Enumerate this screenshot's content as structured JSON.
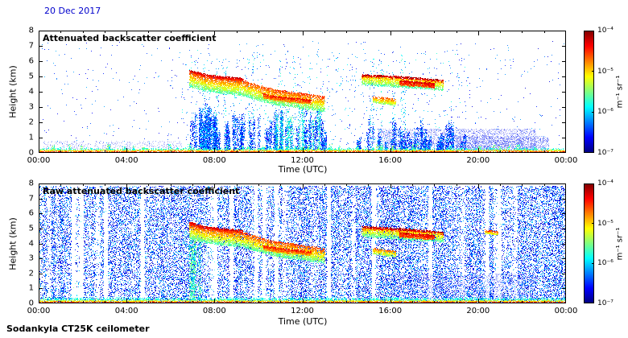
{
  "figure": {
    "date": "20 Dec 2017",
    "date_color": "#0000cc",
    "footer": "Sodankyla CT25K ceilometer"
  },
  "colorbar": {
    "label": "m⁻¹ sr⁻¹",
    "tick_labels": [
      "10⁻⁴",
      "10⁻⁵",
      "10⁻⁶",
      "10⁻⁷"
    ],
    "scale": "log10",
    "range_min": "1e-7",
    "range_max": "1e-4",
    "colormap": "jet"
  },
  "chart_data": [
    {
      "type": "heatmap",
      "title": "Attenuated backscatter coefficient",
      "xlabel": "Time (UTC)",
      "ylabel": "Height (km)",
      "xlim_hours": [
        0,
        24
      ],
      "ylim_km": [
        0,
        8
      ],
      "x_tick_labels": [
        "00:00",
        "04:00",
        "08:00",
        "12:00",
        "16:00",
        "20:00",
        "00:00"
      ],
      "y_tick_labels": [
        "0",
        "1",
        "2",
        "3",
        "4",
        "5",
        "6",
        "7",
        "8"
      ],
      "description": "Cloud layer descending from ~5 km at 07 UTC to ~3.2 km at 13 UTC with red (high backscatter) top; second layer 4.4-5.1 km from 14:40 to 18:30 UTC with strong red top near 17 UTC; small layer ~3.4 km at 15-16 UTC; persistent strong surface return below 0.4 km; virga/precipitation streaks below clouds; weak aerosol haze below 1.6 km from 15:30-22:30 UTC",
      "features": [
        {
          "kind": "haze",
          "t": [
            0.2,
            6.5
          ],
          "h": [
            0.1,
            0.8
          ],
          "count": 500,
          "i": [
            0.06,
            0.2
          ],
          "size": 1,
          "alpha": 0.25
        },
        {
          "kind": "haze",
          "t": [
            15.4,
            22.6
          ],
          "h": [
            0.15,
            1.6
          ],
          "count": 2600,
          "i": [
            0.06,
            0.2
          ],
          "size": 1,
          "alpha": 0.3
        },
        {
          "kind": "haze",
          "t": [
            19.0,
            23.2
          ],
          "h": [
            0.15,
            1.1
          ],
          "count": 1200,
          "i": [
            0.06,
            0.2
          ],
          "size": 1,
          "alpha": 0.3
        },
        {
          "kind": "speckle",
          "t": [
            0.1,
            23.9
          ],
          "h": [
            0.3,
            7.3
          ],
          "count": 600,
          "i": [
            0.08,
            0.3
          ],
          "size": 1,
          "alpha": 0.85
        },
        {
          "kind": "speckle",
          "t": [
            6.5,
            19.5
          ],
          "h": [
            0.3,
            6.8
          ],
          "count": 500,
          "i": [
            0.15,
            0.42
          ],
          "size": 1,
          "alpha": 0.9
        },
        {
          "kind": "columns",
          "t": [
            6.9,
            13.3
          ],
          "hmax": [
            1.0,
            2.9
          ],
          "n": 60,
          "dots": 60,
          "i": [
            0.08,
            0.32
          ],
          "size": 1
        },
        {
          "kind": "columns",
          "t": [
            7.1,
            8.1
          ],
          "hmax": [
            2.0,
            3.4
          ],
          "n": 18,
          "dots": 80,
          "i": [
            0.1,
            0.35
          ],
          "size": 1
        },
        {
          "kind": "columns",
          "t": [
            10.8,
            13.2
          ],
          "hmax": [
            2.2,
            3.1
          ],
          "n": 14,
          "dots": 60,
          "i": [
            0.25,
            0.5
          ],
          "size": 1
        },
        {
          "kind": "columns",
          "t": [
            14.5,
            19.6
          ],
          "hmax": [
            0.7,
            2.3
          ],
          "n": 45,
          "dots": 50,
          "i": [
            0.08,
            0.32
          ],
          "size": 1
        },
        {
          "kind": "columns",
          "t": [
            6.9,
            12.8
          ],
          "hmax": [
            4.8,
            6.9
          ],
          "n": 9,
          "dots": 35,
          "i": [
            0.2,
            0.45
          ],
          "size": 1
        },
        {
          "kind": "columns",
          "t": [
            14.8,
            18.6
          ],
          "hmax": [
            5.2,
            6.6
          ],
          "n": 6,
          "dots": 30,
          "i": [
            0.2,
            0.45
          ],
          "size": 1
        },
        {
          "kind": "columns",
          "t": [
            0.5,
            23.5
          ],
          "hmax": [
            0.35,
            0.6
          ],
          "hbase": 0.05,
          "n": 40,
          "dots": 25,
          "i": [
            0.3,
            0.6
          ],
          "size": 1
        },
        {
          "kind": "band",
          "path": [
            [
              6.85,
              4.85
            ],
            [
              7.6,
              4.55
            ],
            [
              8.4,
              4.4
            ],
            [
              9.2,
              4.3
            ],
            [
              10.0,
              3.95
            ],
            [
              10.8,
              3.65
            ],
            [
              11.6,
              3.5
            ],
            [
              12.3,
              3.35
            ],
            [
              13.0,
              3.2
            ]
          ],
          "half": 0.5,
          "count": 5200,
          "i_top": 0.82,
          "i_bot": 0.45,
          "size": 1
        },
        {
          "kind": "band",
          "path": [
            [
              6.85,
              5.35
            ],
            [
              7.6,
              5.05
            ],
            [
              8.4,
              4.9
            ],
            [
              9.3,
              4.8
            ]
          ],
          "half": 0.1,
          "count": 700,
          "i_top": 0.93,
          "i_bot": 0.8,
          "size": 1
        },
        {
          "kind": "band",
          "path": [
            [
              10.2,
              3.75
            ],
            [
              11.0,
              3.55
            ],
            [
              11.8,
              3.45
            ],
            [
              12.4,
              3.35
            ]
          ],
          "half": 0.14,
          "count": 800,
          "i_top": 0.88,
          "i_bot": 0.72,
          "size": 1
        },
        {
          "kind": "band",
          "path": [
            [
              14.7,
              5.05
            ],
            [
              15.8,
              4.98
            ],
            [
              16.9,
              4.88
            ],
            [
              18.4,
              4.68
            ]
          ],
          "half": 0.1,
          "count": 900,
          "i_top": 0.95,
          "i_bot": 0.85,
          "size": 1
        },
        {
          "kind": "band",
          "path": [
            [
              14.7,
              4.75
            ],
            [
              15.8,
              4.65
            ],
            [
              16.9,
              4.55
            ],
            [
              18.4,
              4.4
            ]
          ],
          "half": 0.28,
          "count": 1700,
          "i_top": 0.7,
          "i_bot": 0.45,
          "size": 1
        },
        {
          "kind": "band",
          "path": [
            [
              16.4,
              4.6
            ],
            [
              17.2,
              4.52
            ],
            [
              18.0,
              4.42
            ]
          ],
          "half": 0.15,
          "count": 700,
          "i_top": 0.92,
          "i_bot": 0.78,
          "size": 1
        },
        {
          "kind": "band",
          "path": [
            [
              15.2,
              3.5
            ],
            [
              15.7,
              3.42
            ],
            [
              16.25,
              3.32
            ]
          ],
          "half": 0.2,
          "count": 450,
          "i_top": 0.8,
          "i_bot": 0.5,
          "size": 1
        },
        {
          "kind": "surface",
          "rows": 4
        }
      ]
    },
    {
      "type": "heatmap",
      "title": "Raw attenuated backscatter coefficient",
      "xlabel": "Time (UTC)",
      "ylabel": "Height (km)",
      "xlim_hours": [
        0,
        24
      ],
      "ylim_km": [
        0,
        8
      ],
      "x_tick_labels": [
        "00:00",
        "04:00",
        "08:00",
        "12:00",
        "16:00",
        "20:00",
        "00:00"
      ],
      "y_tick_labels": [
        "0",
        "1",
        "2",
        "3",
        "4",
        "5",
        "6",
        "7",
        "8"
      ],
      "description": "Same cloud structures as top panel embedded in dense uncorrected background noise (blue speckle) over the full height range, interrupted by white vertical gaps; strong surface return below 0.4 km",
      "features": [
        {
          "kind": "rawnoise",
          "t": [
            0,
            24
          ],
          "h": [
            0.05,
            7.85
          ],
          "count": 52000,
          "i": [
            0.04,
            0.33
          ],
          "size": 1,
          "gap_prob": 0.09
        },
        {
          "kind": "haze",
          "t": [
            16.0,
            22.6
          ],
          "h": [
            0.1,
            2.0
          ],
          "count": 2500,
          "i": [
            0.08,
            0.22
          ],
          "size": 1,
          "alpha": 0.3
        },
        {
          "kind": "speckle",
          "t": [
            0.2,
            23.8
          ],
          "h": [
            0.2,
            7.6
          ],
          "count": 900,
          "i": [
            0.3,
            0.5
          ],
          "size": 1,
          "alpha": 0.7
        },
        {
          "kind": "columns",
          "t": [
            6.8,
            7.4
          ],
          "hmax": [
            3.5,
            4.4
          ],
          "hbase": 0.2,
          "n": 6,
          "dots": 120,
          "i": [
            0.3,
            0.55
          ],
          "size": 1
        },
        {
          "kind": "band",
          "path": [
            [
              6.85,
              4.85
            ],
            [
              7.6,
              4.55
            ],
            [
              8.4,
              4.4
            ],
            [
              9.2,
              4.3
            ],
            [
              10.0,
              3.95
            ],
            [
              10.8,
              3.65
            ],
            [
              11.6,
              3.5
            ],
            [
              12.3,
              3.35
            ],
            [
              13.0,
              3.2
            ]
          ],
          "half": 0.5,
          "count": 5200,
          "i_top": 0.82,
          "i_bot": 0.45,
          "size": 1
        },
        {
          "kind": "band",
          "path": [
            [
              6.85,
              5.35
            ],
            [
              7.6,
              5.05
            ],
            [
              8.4,
              4.9
            ],
            [
              9.3,
              4.8
            ]
          ],
          "half": 0.1,
          "count": 700,
          "i_top": 0.93,
          "i_bot": 0.8,
          "size": 1
        },
        {
          "kind": "band",
          "path": [
            [
              10.2,
              3.75
            ],
            [
              11.0,
              3.55
            ],
            [
              11.8,
              3.45
            ],
            [
              12.4,
              3.35
            ]
          ],
          "half": 0.14,
          "count": 800,
          "i_top": 0.88,
          "i_bot": 0.72,
          "size": 1
        },
        {
          "kind": "band",
          "path": [
            [
              14.7,
              5.05
            ],
            [
              15.8,
              4.98
            ],
            [
              16.9,
              4.88
            ],
            [
              18.4,
              4.68
            ]
          ],
          "half": 0.1,
          "count": 900,
          "i_top": 0.95,
          "i_bot": 0.85,
          "size": 1
        },
        {
          "kind": "band",
          "path": [
            [
              14.7,
              4.75
            ],
            [
              15.8,
              4.65
            ],
            [
              16.9,
              4.55
            ],
            [
              18.4,
              4.4
            ]
          ],
          "half": 0.28,
          "count": 1700,
          "i_top": 0.7,
          "i_bot": 0.45,
          "size": 1
        },
        {
          "kind": "band",
          "path": [
            [
              16.4,
              4.6
            ],
            [
              17.2,
              4.52
            ],
            [
              18.0,
              4.42
            ]
          ],
          "half": 0.15,
          "count": 700,
          "i_top": 0.92,
          "i_bot": 0.78,
          "size": 1
        },
        {
          "kind": "band",
          "path": [
            [
              15.2,
              3.5
            ],
            [
              15.7,
              3.42
            ],
            [
              16.25,
              3.32
            ]
          ],
          "half": 0.2,
          "count": 450,
          "i_top": 0.8,
          "i_bot": 0.5,
          "size": 1
        },
        {
          "kind": "band",
          "path": [
            [
              20.3,
              4.8
            ],
            [
              20.9,
              4.7
            ]
          ],
          "half": 0.12,
          "count": 220,
          "i_top": 0.85,
          "i_bot": 0.55,
          "size": 1
        },
        {
          "kind": "surface",
          "rows": 5
        }
      ]
    }
  ]
}
